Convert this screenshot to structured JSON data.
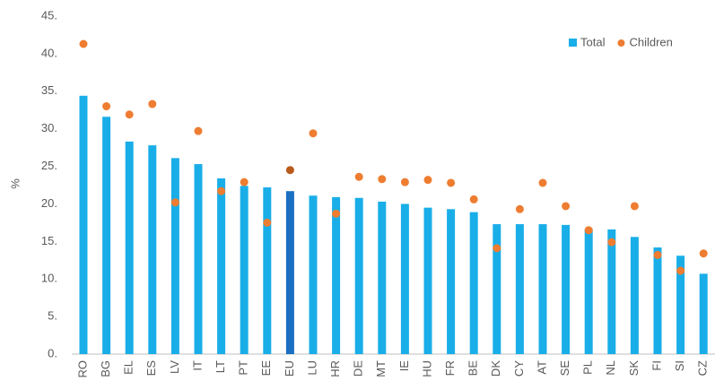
{
  "chart_data": {
    "type": "bar",
    "ylabel": "%",
    "categories": [
      "RO",
      "BG",
      "EL",
      "ES",
      "LV",
      "IT",
      "LT",
      "PT",
      "EE",
      "EU",
      "LU",
      "HR",
      "DE",
      "MT",
      "IE",
      "HU",
      "FR",
      "BE",
      "DK",
      "CY",
      "AT",
      "SE",
      "PL",
      "NL",
      "SK",
      "FI",
      "SI",
      "CZ"
    ],
    "series": [
      {
        "name": "Total",
        "type": "bar",
        "color": "#19aee8",
        "colors": [
          "#19aee8",
          "#19aee8",
          "#19aee8",
          "#19aee8",
          "#19aee8",
          "#19aee8",
          "#19aee8",
          "#19aee8",
          "#19aee8",
          "#1a6fc0",
          "#19aee8",
          "#19aee8",
          "#19aee8",
          "#19aee8",
          "#19aee8",
          "#19aee8",
          "#19aee8",
          "#19aee8",
          "#19aee8",
          "#19aee8",
          "#19aee8",
          "#19aee8",
          "#19aee8",
          "#19aee8",
          "#19aee8",
          "#19aee8",
          "#19aee8",
          "#19aee8"
        ],
        "values": [
          34.4,
          31.6,
          28.3,
          27.8,
          26.1,
          25.3,
          23.4,
          22.4,
          22.2,
          21.7,
          21.1,
          20.9,
          20.8,
          20.3,
          20.0,
          19.5,
          19.3,
          18.9,
          17.3,
          17.3,
          17.3,
          17.2,
          16.6,
          16.6,
          15.6,
          14.2,
          13.1,
          10.7
        ]
      },
      {
        "name": "Children",
        "type": "scatter",
        "color": "#ee7d31",
        "colors": [
          "#ee7d31",
          "#ee7d31",
          "#ee7d31",
          "#ee7d31",
          "#ee7d31",
          "#ee7d31",
          "#ee7d31",
          "#ee7d31",
          "#ee7d31",
          "#b85a1c",
          "#ee7d31",
          "#ee7d31",
          "#ee7d31",
          "#ee7d31",
          "#ee7d31",
          "#ee7d31",
          "#ee7d31",
          "#ee7d31",
          "#ee7d31",
          "#ee7d31",
          "#ee7d31",
          "#ee7d31",
          "#ee7d31",
          "#ee7d31",
          "#ee7d31",
          "#ee7d31",
          "#ee7d31",
          "#ee7d31"
        ],
        "values": [
          41.3,
          33.0,
          31.9,
          33.3,
          20.2,
          29.7,
          21.7,
          22.9,
          17.5,
          24.5,
          29.4,
          18.7,
          23.6,
          23.3,
          22.9,
          23.2,
          22.8,
          20.6,
          14.1,
          19.3,
          22.8,
          19.7,
          16.5,
          14.9,
          19.7,
          13.2,
          11.1,
          13.4
        ]
      }
    ],
    "ylim": [
      0,
      45
    ],
    "yticks": [
      {
        "value": 0,
        "label": "0."
      },
      {
        "value": 5,
        "label": "5."
      },
      {
        "value": 10,
        "label": "10."
      },
      {
        "value": 15,
        "label": "15."
      },
      {
        "value": 20,
        "label": "20."
      },
      {
        "value": 25,
        "label": "25."
      },
      {
        "value": 30,
        "label": "30."
      },
      {
        "value": 35,
        "label": "35."
      },
      {
        "value": 40,
        "label": "40."
      },
      {
        "value": 45,
        "label": "45."
      }
    ],
    "grid": false,
    "legend": "top-right"
  }
}
